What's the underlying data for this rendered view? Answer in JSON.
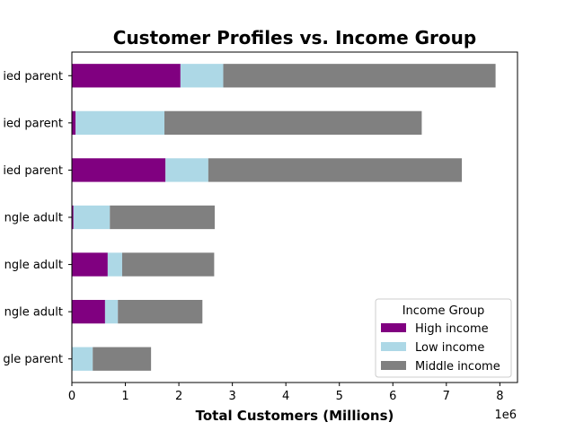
{
  "chart_data": {
    "type": "bar",
    "orientation": "horizontal",
    "stacked": true,
    "title": "Customer Profiles vs. Income Group",
    "xlabel": "Total Customers (Millions)",
    "ylabel": "",
    "x_offset_label": "1e6",
    "xlim": [
      0,
      8330000
    ],
    "xticks": [
      0,
      1,
      2,
      3,
      4,
      5,
      6,
      7,
      8
    ],
    "categories": [
      "ied parent",
      "ied parent",
      "ied parent",
      "ngle adult",
      "ngle adult",
      "ngle adult",
      "gle parent"
    ],
    "series": [
      {
        "name": "High income",
        "color": "#800080",
        "values": [
          2030000,
          70000,
          1750000,
          30000,
          670000,
          620000,
          0
        ]
      },
      {
        "name": "Low income",
        "color": "#add8e6",
        "values": [
          800000,
          1660000,
          800000,
          680000,
          270000,
          240000,
          390000
        ]
      },
      {
        "name": "Middle income",
        "color": "#808080",
        "values": [
          5090000,
          4810000,
          4740000,
          1960000,
          1720000,
          1580000,
          1090000
        ]
      }
    ],
    "legend": {
      "title": "Income Group",
      "position": "lower-right"
    },
    "grid": false
  }
}
